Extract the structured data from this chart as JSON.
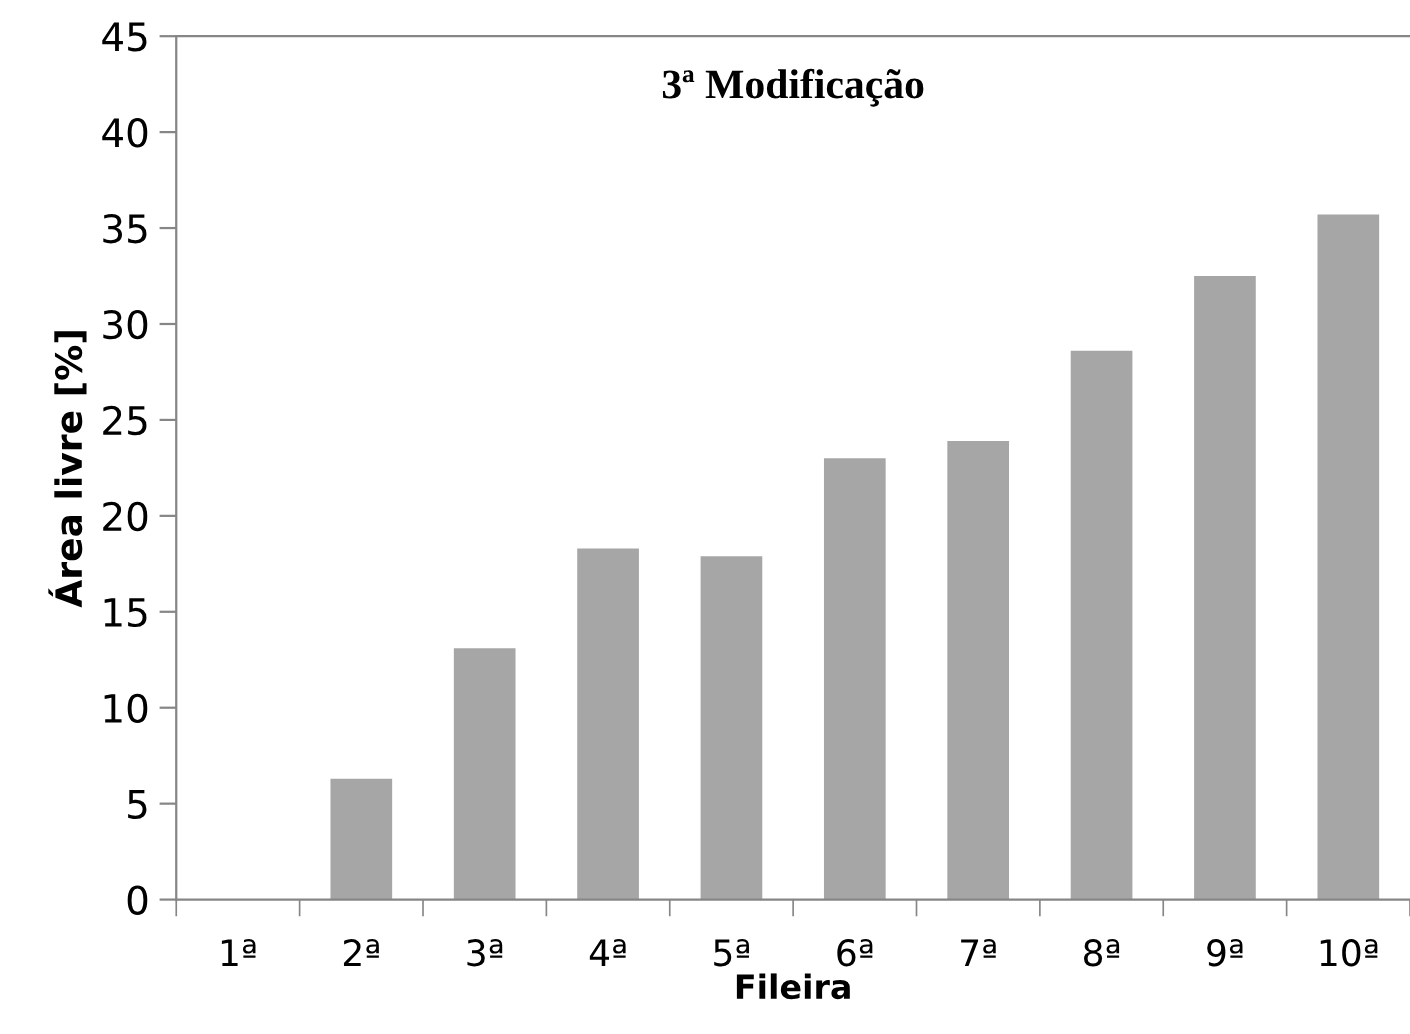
{
  "chart_data": {
    "type": "bar",
    "title": "3ª Modificação",
    "xlabel": "Fileira",
    "ylabel": "Área livre [%]",
    "categories": [
      "1ª",
      "2ª",
      "3ª",
      "4ª",
      "5ª",
      "6ª",
      "7ª",
      "8ª",
      "9ª",
      "10ª"
    ],
    "values": [
      0,
      6.3,
      13.1,
      18.3,
      17.9,
      23.0,
      23.9,
      28.6,
      32.5,
      35.7
    ],
    "color": "#a6a6a6",
    "ylim": [
      0,
      45
    ],
    "yticks": [
      0,
      5,
      10,
      15,
      20,
      25,
      30,
      35,
      40,
      45
    ],
    "grid": false
  }
}
